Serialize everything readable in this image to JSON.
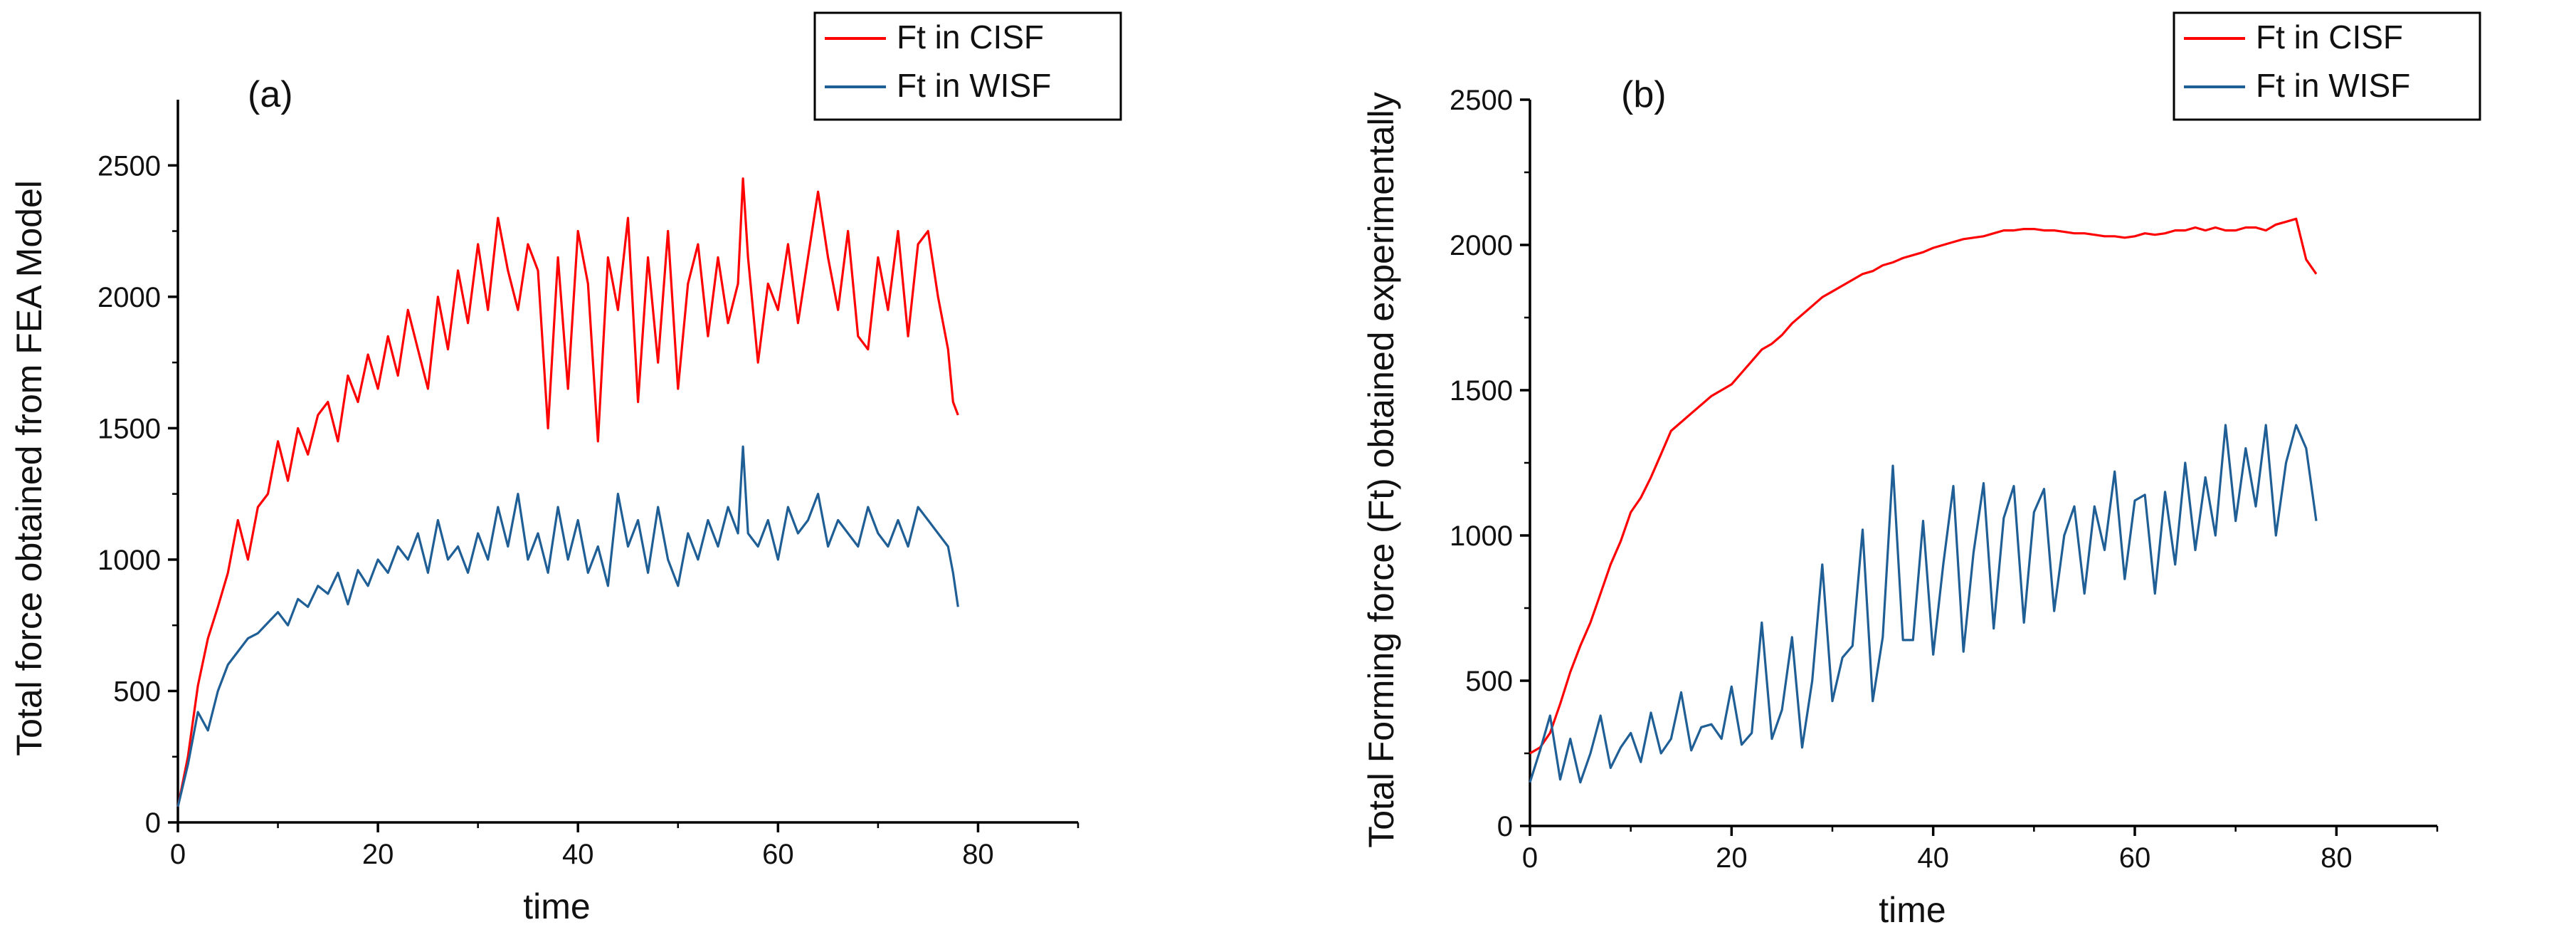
{
  "chart_data": [
    {
      "type": "line",
      "panel_label": "(a)",
      "xlabel": "time",
      "ylabel": "Total force obtained from FEA Model",
      "xlim": [
        0,
        90
      ],
      "ylim": [
        0,
        2750
      ],
      "x_ticks": [
        0,
        20,
        40,
        60,
        80
      ],
      "y_ticks": [
        0,
        500,
        1000,
        1500,
        2000,
        2500
      ],
      "x_tick_labels": [
        "0",
        "20",
        "40",
        "60",
        "80"
      ],
      "y_tick_labels": [
        "0",
        "500",
        "1000",
        "1500",
        "2000",
        "2500"
      ],
      "grid": false,
      "legend_position": "top-right",
      "series": [
        {
          "name": "Ft in CISF",
          "color": "#ff0000",
          "x": [
            0,
            1,
            2,
            3,
            4,
            5,
            6,
            7,
            8,
            9,
            10,
            11,
            12,
            13,
            14,
            15,
            16,
            17,
            18,
            19,
            20,
            21,
            22,
            23,
            24,
            25,
            26,
            27,
            28,
            29,
            30,
            31,
            32,
            33,
            34,
            35,
            36,
            37,
            38,
            39,
            40,
            41,
            42,
            43,
            44,
            45,
            46,
            47,
            48,
            49,
            50,
            51,
            52,
            53,
            54,
            55,
            56,
            56.5,
            57,
            58,
            59,
            60,
            61,
            62,
            63,
            64,
            65,
            66,
            67,
            68,
            69,
            70,
            71,
            72,
            73,
            74,
            75,
            76,
            77,
            77.5,
            78
          ],
          "values": [
            60,
            250,
            520,
            700,
            820,
            950,
            1150,
            1000,
            1200,
            1250,
            1450,
            1300,
            1500,
            1400,
            1550,
            1600,
            1450,
            1700,
            1600,
            1780,
            1650,
            1850,
            1700,
            1950,
            1800,
            1650,
            2000,
            1800,
            2100,
            1900,
            2200,
            1950,
            2300,
            2100,
            1950,
            2200,
            2100,
            1500,
            2150,
            1650,
            2250,
            2050,
            1450,
            2150,
            1950,
            2300,
            1600,
            2150,
            1750,
            2250,
            1650,
            2050,
            2200,
            1850,
            2150,
            1900,
            2050,
            2450,
            2150,
            1750,
            2050,
            1950,
            2200,
            1900,
            2150,
            2400,
            2150,
            1950,
            2250,
            1850,
            1800,
            2150,
            1950,
            2250,
            1850,
            2200,
            2250,
            2000,
            1800,
            1600,
            1550
          ]
        },
        {
          "name": "Ft in WISF",
          "color": "#1f5f96",
          "x": [
            0,
            1,
            2,
            3,
            4,
            5,
            6,
            7,
            8,
            9,
            10,
            11,
            12,
            13,
            14,
            15,
            16,
            17,
            18,
            19,
            20,
            21,
            22,
            23,
            24,
            25,
            26,
            27,
            28,
            29,
            30,
            31,
            32,
            33,
            34,
            35,
            36,
            37,
            38,
            39,
            40,
            41,
            42,
            43,
            44,
            45,
            46,
            47,
            48,
            49,
            50,
            51,
            52,
            53,
            54,
            55,
            56,
            56.5,
            57,
            58,
            59,
            60,
            61,
            62,
            63,
            64,
            65,
            66,
            67,
            68,
            69,
            70,
            71,
            72,
            73,
            74,
            75,
            76,
            77,
            77.5,
            78
          ],
          "values": [
            60,
            220,
            420,
            350,
            500,
            600,
            650,
            700,
            720,
            760,
            800,
            750,
            850,
            820,
            900,
            870,
            950,
            830,
            960,
            900,
            1000,
            950,
            1050,
            1000,
            1100,
            950,
            1150,
            1000,
            1050,
            950,
            1100,
            1000,
            1200,
            1050,
            1250,
            1000,
            1100,
            950,
            1200,
            1000,
            1150,
            950,
            1050,
            900,
            1250,
            1050,
            1150,
            950,
            1200,
            1000,
            900,
            1100,
            1000,
            1150,
            1050,
            1200,
            1100,
            1430,
            1100,
            1050,
            1150,
            1000,
            1200,
            1100,
            1150,
            1250,
            1050,
            1150,
            1100,
            1050,
            1200,
            1100,
            1050,
            1150,
            1050,
            1200,
            1150,
            1100,
            1050,
            950,
            820
          ]
        }
      ]
    },
    {
      "type": "line",
      "panel_label": "(b)",
      "xlabel": "time",
      "ylabel": "Total Forming force (Ft) obtained experimentally",
      "xlim": [
        0,
        90
      ],
      "ylim": [
        0,
        2500
      ],
      "x_ticks": [
        0,
        20,
        40,
        60,
        80
      ],
      "y_ticks": [
        0,
        500,
        1000,
        1500,
        2000,
        2500
      ],
      "x_tick_labels": [
        "0",
        "20",
        "40",
        "60",
        "80"
      ],
      "y_tick_labels": [
        "0",
        "500",
        "1000",
        "1500",
        "2000",
        "2500"
      ],
      "grid": false,
      "legend_position": "top-right",
      "series": [
        {
          "name": "Ft in CISF",
          "color": "#ff0000",
          "x": [
            0,
            1,
            2,
            3,
            4,
            5,
            6,
            7,
            8,
            9,
            10,
            11,
            12,
            13,
            14,
            15,
            16,
            17,
            18,
            19,
            20,
            21,
            22,
            23,
            24,
            25,
            26,
            27,
            28,
            29,
            30,
            31,
            32,
            33,
            34,
            35,
            36,
            37,
            38,
            39,
            40,
            41,
            42,
            43,
            44,
            45,
            46,
            47,
            48,
            49,
            50,
            51,
            52,
            53,
            54,
            55,
            56,
            57,
            58,
            59,
            60,
            61,
            62,
            63,
            64,
            65,
            66,
            67,
            68,
            69,
            70,
            71,
            72,
            73,
            74,
            75,
            76,
            77,
            78
          ],
          "values": [
            250,
            270,
            320,
            420,
            530,
            620,
            700,
            800,
            900,
            980,
            1080,
            1130,
            1200,
            1280,
            1360,
            1390,
            1420,
            1450,
            1480,
            1500,
            1520,
            1560,
            1600,
            1640,
            1660,
            1690,
            1730,
            1760,
            1790,
            1820,
            1840,
            1860,
            1880,
            1900,
            1910,
            1930,
            1940,
            1955,
            1965,
            1975,
            1990,
            2000,
            2010,
            2020,
            2025,
            2030,
            2040,
            2050,
            2050,
            2055,
            2055,
            2050,
            2050,
            2045,
            2040,
            2040,
            2035,
            2030,
            2030,
            2025,
            2030,
            2040,
            2035,
            2040,
            2050,
            2050,
            2060,
            2050,
            2060,
            2050,
            2050,
            2060,
            2060,
            2050,
            2070,
            2080,
            2090,
            1950,
            1900
          ]
        },
        {
          "name": "Ft in WISF",
          "color": "#1f5f96",
          "x": [
            0,
            1,
            2,
            3,
            4,
            5,
            6,
            7,
            8,
            9,
            10,
            11,
            12,
            13,
            14,
            15,
            16,
            17,
            18,
            19,
            20,
            21,
            22,
            23,
            24,
            25,
            26,
            27,
            28,
            29,
            30,
            31,
            32,
            33,
            34,
            35,
            36,
            37,
            38,
            39,
            40,
            41,
            42,
            43,
            44,
            45,
            46,
            47,
            48,
            49,
            50,
            51,
            52,
            53,
            54,
            55,
            56,
            57,
            58,
            59,
            60,
            61,
            62,
            63,
            64,
            65,
            66,
            67,
            68,
            69,
            70,
            71,
            72,
            73,
            74,
            75,
            76,
            77,
            78
          ],
          "values": [
            150,
            260,
            380,
            160,
            300,
            150,
            250,
            380,
            200,
            270,
            320,
            220,
            390,
            250,
            300,
            460,
            260,
            340,
            350,
            300,
            480,
            280,
            320,
            700,
            300,
            400,
            650,
            270,
            500,
            900,
            430,
            580,
            620,
            1020,
            430,
            650,
            1240,
            640,
            640,
            1050,
            590,
            900,
            1170,
            600,
            940,
            1180,
            680,
            1060,
            1170,
            700,
            1080,
            1160,
            740,
            1000,
            1100,
            800,
            1100,
            950,
            1220,
            850,
            1120,
            1140,
            800,
            1150,
            900,
            1250,
            950,
            1200,
            1000,
            1380,
            1050,
            1300,
            1100,
            1380,
            1000,
            1250,
            1380,
            1300,
            1050
          ]
        }
      ]
    }
  ]
}
